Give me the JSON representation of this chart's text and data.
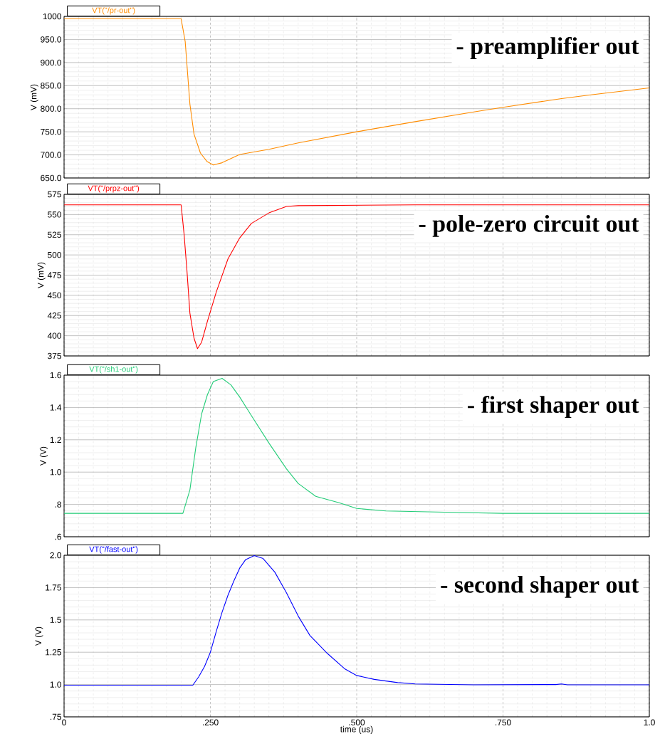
{
  "chart_data": [
    {
      "type": "line",
      "ylabel": "V (mV)",
      "annotations": [
        "- preamplifier out"
      ],
      "grid": true,
      "tick_labels": "y",
      "xlim": [
        0,
        1.0
      ],
      "xticks": [
        {
          "value": 0,
          "label": null
        },
        {
          "value": 0.25,
          "label": null
        },
        {
          "value": 0.5,
          "label": null
        },
        {
          "value": 0.75,
          "label": null
        },
        {
          "value": 1.0,
          "label": null
        }
      ],
      "ylim": [
        650,
        1000
      ],
      "yticks": [
        {
          "value": 650,
          "label": "650.0"
        },
        {
          "value": 700,
          "label": "700.0"
        },
        {
          "value": 750,
          "label": "750.0"
        },
        {
          "value": 800,
          "label": "800.0"
        },
        {
          "value": 850,
          "label": "850.0"
        },
        {
          "value": 900,
          "label": "900.0"
        },
        {
          "value": 950,
          "label": "950.0"
        },
        1000
      ],
      "series": [
        {
          "name": "VT(\"/pr-out\")",
          "color": "#ff8c00",
          "x": [
            0,
            0.1,
            0.2,
            0.207,
            0.215,
            0.222,
            0.233,
            0.244,
            0.255,
            0.27,
            0.3,
            0.35,
            0.4,
            0.5,
            0.6,
            0.7,
            0.75,
            0.85,
            0.9,
            1.0
          ],
          "values": [
            995,
            995,
            995,
            945,
            810,
            745,
            704,
            686,
            678,
            683,
            701,
            712,
            726,
            750,
            772,
            793,
            803,
            822,
            830,
            845
          ]
        }
      ]
    },
    {
      "type": "line",
      "ylabel": "V (mV)",
      "annotations": [
        "- pole-zero circuit out"
      ],
      "grid": true,
      "tick_labels": "y",
      "xlim": [
        0,
        1.0
      ],
      "xticks": [
        {
          "value": 0,
          "label": null
        },
        {
          "value": 0.25,
          "label": null
        },
        {
          "value": 0.5,
          "label": null
        },
        {
          "value": 0.75,
          "label": null
        },
        {
          "value": 1.0,
          "label": null
        }
      ],
      "ylim": [
        375,
        575
      ],
      "yticks": [
        375,
        400,
        425,
        450,
        475,
        500,
        525,
        550,
        575
      ],
      "series": [
        {
          "name": "VT(\"/prpz-out\")",
          "color": "#ff0000",
          "x": [
            0,
            0.1,
            0.2,
            0.205,
            0.21,
            0.215,
            0.222,
            0.228,
            0.235,
            0.245,
            0.26,
            0.28,
            0.3,
            0.32,
            0.35,
            0.38,
            0.4,
            0.6,
            0.8,
            1.0
          ],
          "values": [
            562,
            562,
            562,
            526,
            480,
            428,
            397,
            384,
            392,
            418,
            454,
            495,
            521,
            539,
            552,
            560,
            561,
            562,
            562,
            562
          ]
        }
      ]
    },
    {
      "type": "line",
      "ylabel": "V (V)",
      "annotations": [
        "- first shaper out"
      ],
      "grid": true,
      "tick_labels": "y",
      "xlim": [
        0,
        1.0
      ],
      "xticks": [
        {
          "value": 0,
          "label": null
        },
        {
          "value": 0.25,
          "label": null
        },
        {
          "value": 0.5,
          "label": null
        },
        {
          "value": 0.75,
          "label": null
        },
        {
          "value": 1.0,
          "label": null
        }
      ],
      "ylim": [
        0.6,
        1.6
      ],
      "yticks": [
        {
          "value": 0.6,
          "label": ".6"
        },
        {
          "value": 0.8,
          "label": ".8"
        },
        {
          "value": 1.0,
          "label": "1.0"
        },
        1.2,
        1.4,
        1.6
      ],
      "series": [
        {
          "name": "VT(\"/sh1-out\")",
          "color": "#22cc77",
          "x": [
            0,
            0.1,
            0.203,
            0.215,
            0.225,
            0.235,
            0.245,
            0.255,
            0.27,
            0.285,
            0.3,
            0.32,
            0.35,
            0.38,
            0.4,
            0.43,
            0.47,
            0.5,
            0.55,
            0.65,
            0.75,
            1.0
          ],
          "values": [
            0.745,
            0.745,
            0.745,
            0.89,
            1.15,
            1.36,
            1.48,
            1.56,
            1.58,
            1.54,
            1.465,
            1.35,
            1.18,
            1.02,
            0.93,
            0.85,
            0.81,
            0.775,
            0.76,
            0.752,
            0.745,
            0.745
          ]
        }
      ]
    },
    {
      "type": "line",
      "xlabel": "time (us)",
      "ylabel": "V (V)",
      "annotations": [
        "- second shaper out"
      ],
      "grid": true,
      "xlim": [
        0,
        1.0
      ],
      "xticks": [
        {
          "value": 0,
          "label": "0"
        },
        {
          "value": 0.25,
          "label": ".250"
        },
        {
          "value": 0.5,
          "label": ".500"
        },
        {
          "value": 0.75,
          "label": ".750"
        },
        {
          "value": 1.0,
          "label": "1.0"
        }
      ],
      "ylim": [
        0.75,
        2.0
      ],
      "yticks": [
        {
          "value": 0.75,
          "label": ".75"
        },
        {
          "value": 1.0,
          "label": "1.0"
        },
        1.25,
        1.5,
        1.75,
        {
          "value": 2.0,
          "label": "2.0"
        }
      ],
      "series": [
        {
          "name": "VT(\"/fast-out\")",
          "color": "#0000ff",
          "x": [
            0,
            0.1,
            0.22,
            0.23,
            0.24,
            0.25,
            0.26,
            0.27,
            0.28,
            0.29,
            0.3,
            0.31,
            0.325,
            0.34,
            0.36,
            0.38,
            0.4,
            0.42,
            0.45,
            0.48,
            0.5,
            0.53,
            0.57,
            0.6,
            0.7,
            0.84,
            0.85,
            0.86,
            1.0
          ],
          "values": [
            0.995,
            0.995,
            0.995,
            1.06,
            1.14,
            1.25,
            1.41,
            1.56,
            1.69,
            1.8,
            1.9,
            1.965,
            1.997,
            1.975,
            1.87,
            1.71,
            1.53,
            1.38,
            1.24,
            1.12,
            1.07,
            1.04,
            1.015,
            1.005,
            0.998,
            1.0,
            1.005,
            0.998,
            0.998
          ]
        }
      ]
    }
  ]
}
